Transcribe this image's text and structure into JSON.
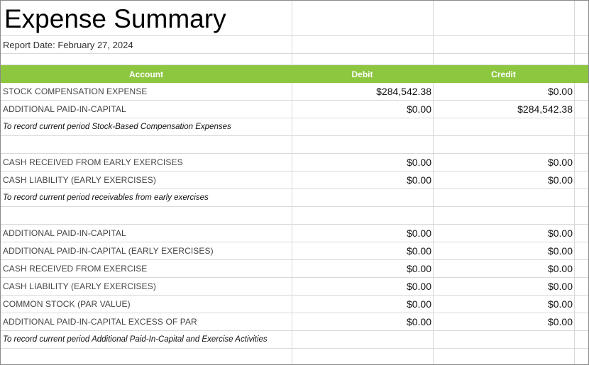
{
  "report": {
    "title": "Expense Summary",
    "report_date": "Report Date: February 27, 2024"
  },
  "colors": {
    "header_bg": "#8dc63f",
    "header_text": "#ffffff",
    "grid": "#d9d9d9"
  },
  "columns": {
    "account": "Account",
    "debit": "Debit",
    "credit": "Credit"
  },
  "sections": [
    {
      "entries": [
        {
          "account": "STOCK COMPENSATION EXPENSE",
          "debit": "$284,542.38",
          "credit": "$0.00"
        },
        {
          "account": "ADDITIONAL PAID-IN-CAPITAL",
          "debit": "$0.00",
          "credit": "$284,542.38"
        }
      ],
      "note": "To record current period Stock-Based Compensation Expenses"
    },
    {
      "entries": [
        {
          "account": "CASH RECEIVED FROM EARLY EXERCISES",
          "debit": "$0.00",
          "credit": "$0.00"
        },
        {
          "account": "CASH LIABILITY (EARLY EXERCISES)",
          "debit": "$0.00",
          "credit": "$0.00"
        }
      ],
      "note": "To record current period receivables from early exercises"
    },
    {
      "entries": [
        {
          "account": "ADDITIONAL PAID-IN-CAPITAL",
          "debit": "$0.00",
          "credit": "$0.00"
        },
        {
          "account": "ADDITIONAL PAID-IN-CAPITAL (EARLY EXERCISES)",
          "debit": "$0.00",
          "credit": "$0.00"
        },
        {
          "account": "CASH RECEIVED FROM EXERCISE",
          "debit": "$0.00",
          "credit": "$0.00"
        },
        {
          "account": "CASH LIABILITY (EARLY EXERCISES)",
          "debit": "$0.00",
          "credit": "$0.00"
        },
        {
          "account": "COMMON STOCK (PAR VALUE)",
          "debit": "$0.00",
          "credit": "$0.00"
        },
        {
          "account": "ADDITIONAL PAID-IN-CAPITAL EXCESS OF PAR",
          "debit": "$0.00",
          "credit": "$0.00"
        }
      ],
      "note": "To record current period Additional Paid-In-Capital and Exercise Activities"
    }
  ]
}
